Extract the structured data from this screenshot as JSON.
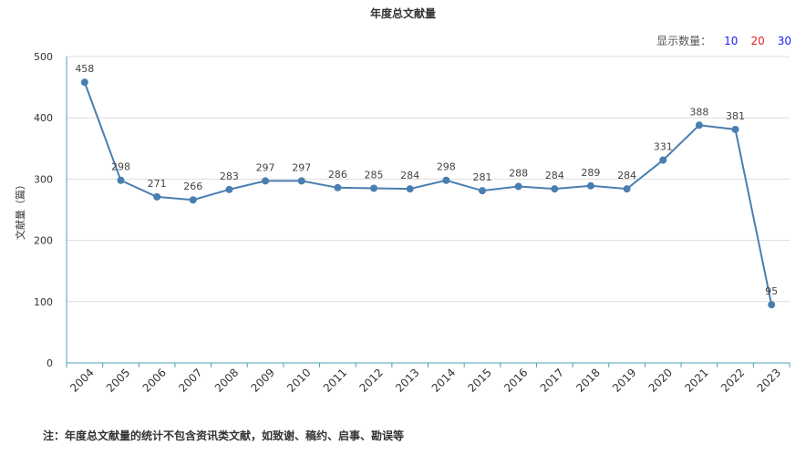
{
  "chart_data": {
    "type": "line",
    "title": "年度总文献量",
    "ylabel": "文献量（篇）",
    "xlabel": "",
    "ylim": [
      0,
      500
    ],
    "y_ticks": [
      0,
      100,
      200,
      300,
      400,
      500
    ],
    "grid": "horizontal",
    "categories": [
      "2004",
      "2005",
      "2006",
      "2007",
      "2008",
      "2009",
      "2010",
      "2011",
      "2012",
      "2013",
      "2014",
      "2015",
      "2016",
      "2017",
      "2018",
      "2019",
      "2020",
      "2021",
      "2022",
      "2023"
    ],
    "values": [
      458,
      298,
      271,
      266,
      283,
      297,
      297,
      286,
      285,
      284,
      298,
      281,
      288,
      284,
      289,
      284,
      331,
      388,
      381,
      95
    ],
    "line_color": "#4a7eb0"
  },
  "count_selector": {
    "label": "显示数量：",
    "options": [
      {
        "label": "10",
        "color": "#1a1aff"
      },
      {
        "label": "20",
        "color": "#e02020"
      },
      {
        "label": "30",
        "color": "#1a1aff"
      }
    ]
  },
  "footnote": "注：年度总文献量的统计不包含资讯类文献，如致谢、稿约、启事、勘误等"
}
